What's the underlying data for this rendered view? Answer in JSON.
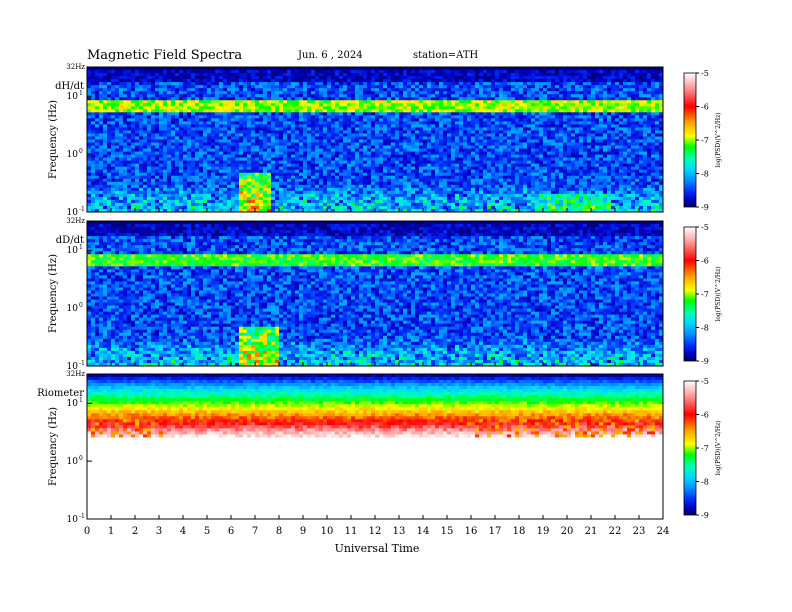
{
  "header": {
    "title": "Magnetic Field Spectra",
    "date": "Jun. 6 , 2024",
    "station": "station=ATH"
  },
  "colors": {
    "colormap": [
      "#ffffff",
      "#ff9090",
      "#ff0000",
      "#ffa000",
      "#ffff00",
      "#00ff00",
      "#00ffb0",
      "#00d8ff",
      "#0090ff",
      "#0030ff",
      "#0000c0",
      "#000060"
    ]
  },
  "chart_data": [
    {
      "type": "heatmap",
      "panel_label": "dH/dt",
      "ylabel": "Frequency (Hz)",
      "top_label": "32Hz",
      "y_ticks": [
        {
          "base": "10",
          "exp": "1",
          "value": 10
        },
        {
          "base": "10",
          "exp": "0",
          "value": 1
        },
        {
          "base": "10",
          "exp": "-1",
          "value": 0.1
        }
      ],
      "ylim": [
        0.1,
        32
      ],
      "xlim": [
        0,
        24
      ],
      "colorbar": {
        "ticks": [
          "-5",
          "-6",
          "-7",
          "-8",
          "-9"
        ],
        "label": "log(PSD)(V^2/Hz)",
        "range": [
          -9,
          -5
        ]
      },
      "features": [
        {
          "type": "band",
          "freq": [
            5.5,
            8.5
          ],
          "level": -6.6
        },
        {
          "type": "band",
          "freq": [
            17,
            27
          ],
          "level": -8.6
        },
        {
          "type": "burst",
          "time": [
            6.4,
            7.6
          ],
          "freq_max": 0.5,
          "level": -6.2
        },
        {
          "type": "burst",
          "time": [
            18.7,
            21.8
          ],
          "freq_max": 0.2,
          "level": -6.6
        }
      ]
    },
    {
      "type": "heatmap",
      "panel_label": "dD/dt",
      "ylabel": "Frequency (Hz)",
      "top_label": "32Hz",
      "y_ticks": [
        {
          "base": "10",
          "exp": "1",
          "value": 10
        },
        {
          "base": "10",
          "exp": "0",
          "value": 1
        },
        {
          "base": "10",
          "exp": "-1",
          "value": 0.1
        }
      ],
      "ylim": [
        0.1,
        32
      ],
      "xlim": [
        0,
        24
      ],
      "colorbar": {
        "ticks": [
          "-5",
          "-6",
          "-7",
          "-8",
          "-9"
        ],
        "label": "log(PSD)(V^2/Hz)",
        "range": [
          -9,
          -5
        ]
      },
      "features": [
        {
          "type": "band",
          "freq": [
            5.5,
            9
          ],
          "level": -6.8
        },
        {
          "type": "band",
          "freq": [
            17,
            27
          ],
          "level": -8.6
        },
        {
          "type": "burst",
          "time": [
            6.3,
            8.0
          ],
          "freq_max": 0.5,
          "level": -6.3
        }
      ]
    },
    {
      "type": "heatmap",
      "panel_label": "Riometer",
      "ylabel": "Frequency (Hz)",
      "top_label": "32Hz",
      "y_ticks": [
        {
          "base": "10",
          "exp": "1",
          "value": 10
        },
        {
          "base": "10",
          "exp": "0",
          "value": 1
        },
        {
          "base": "10",
          "exp": "-1",
          "value": 0.1
        }
      ],
      "ylim": [
        0.1,
        32
      ],
      "xlim": [
        0,
        24
      ],
      "xlabel": "Universal Time",
      "x_ticks": [
        "0",
        "1",
        "2",
        "3",
        "4",
        "5",
        "6",
        "7",
        "8",
        "9",
        "10",
        "11",
        "12",
        "13",
        "14",
        "15",
        "16",
        "17",
        "18",
        "19",
        "20",
        "21",
        "22",
        "23",
        "24"
      ],
      "colorbar": {
        "ticks": [
          "-5",
          "-6",
          "-7",
          "-8",
          "-9"
        ],
        "label": "log(PSD)(V^2/Hz)",
        "range": [
          -9,
          -5
        ]
      },
      "features": [
        {
          "type": "gradient",
          "freq_top": 32,
          "freq_bottom": 2.5,
          "level_top": -9,
          "level_bottom": -5
        },
        {
          "type": "spikes",
          "time": [
            0,
            3.1
          ],
          "level": -6.2
        },
        {
          "type": "spikes",
          "time": [
            15.8,
            23.9
          ],
          "level": -6.2
        }
      ]
    }
  ]
}
